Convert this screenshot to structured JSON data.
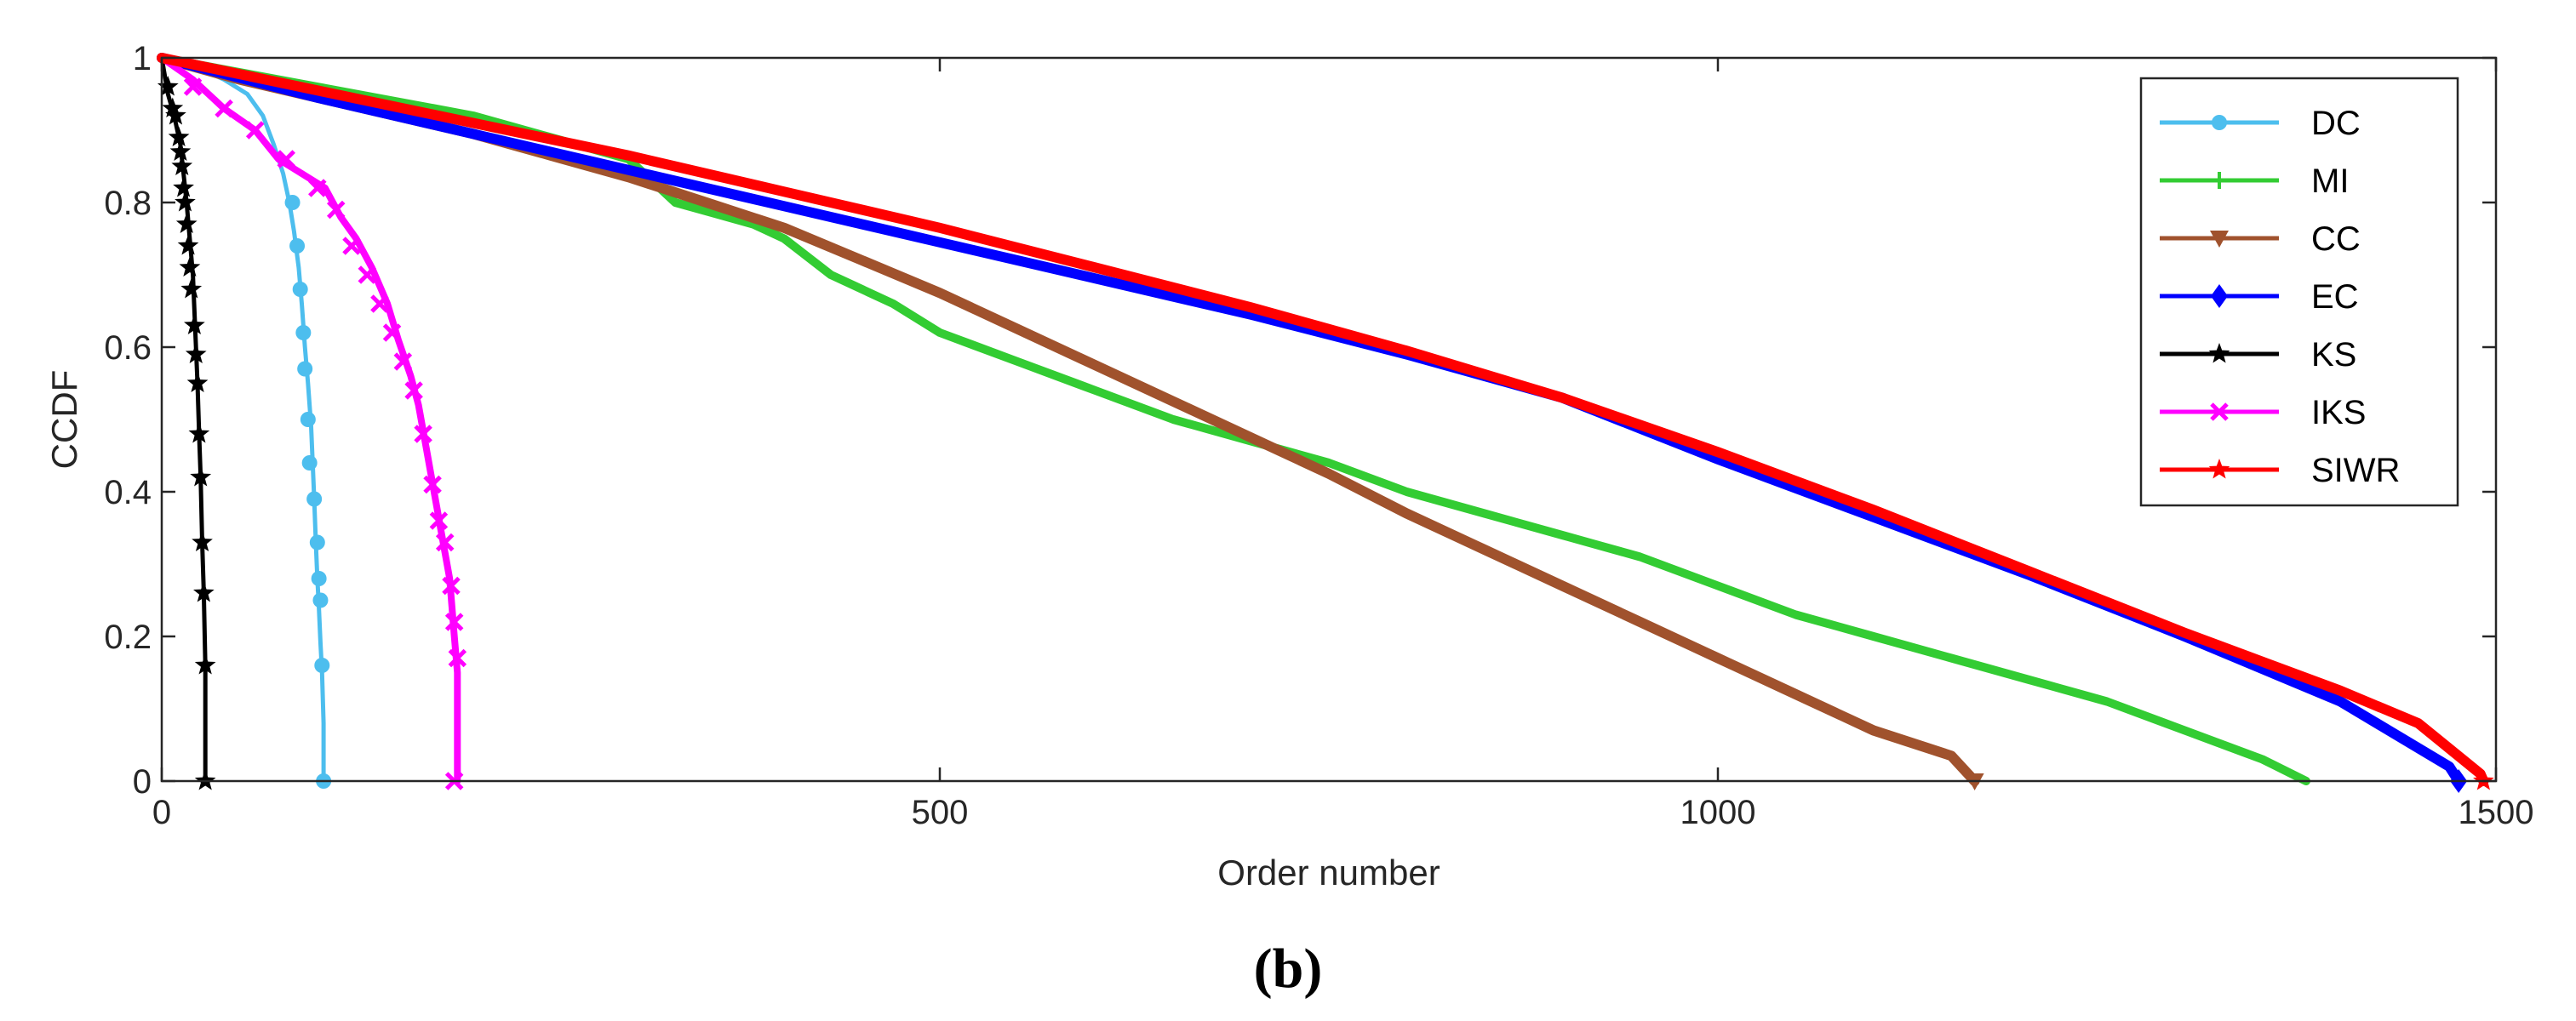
{
  "chart_data": {
    "type": "line",
    "title": "",
    "caption": "(b)",
    "xlabel": "Order number",
    "ylabel": "CCDF",
    "xlim": [
      0,
      1500
    ],
    "ylim": [
      0,
      1
    ],
    "xticks": [
      0,
      500,
      1000,
      1500
    ],
    "xtick_labels": [
      "0",
      "500",
      "1000",
      "1500"
    ],
    "yticks": [
      0,
      0.2,
      0.4,
      0.6,
      0.8,
      1
    ],
    "ytick_labels": [
      "0",
      "0.2",
      "0.4",
      "0.6",
      "0.8",
      "1"
    ],
    "grid": false,
    "legend_position": "top-right",
    "series": [
      {
        "name": "DC",
        "color": "#4DBEEE",
        "marker": "circle",
        "thickness": 5,
        "points": [
          [
            0,
            1
          ],
          [
            20,
            0.99
          ],
          [
            40,
            0.97
          ],
          [
            55,
            0.95
          ],
          [
            65,
            0.92
          ],
          [
            72,
            0.88
          ],
          [
            78,
            0.84
          ],
          [
            82,
            0.8
          ],
          [
            85,
            0.76
          ],
          [
            88,
            0.71
          ],
          [
            90,
            0.66
          ],
          [
            92,
            0.6
          ],
          [
            94,
            0.55
          ],
          [
            96,
            0.49
          ],
          [
            97,
            0.44
          ],
          [
            98,
            0.39
          ],
          [
            99,
            0.33
          ],
          [
            100,
            0.28
          ],
          [
            101,
            0.24
          ],
          [
            102,
            0.19
          ],
          [
            103,
            0.15
          ],
          [
            104,
            0.08
          ],
          [
            104,
            0
          ]
        ],
        "markers": [
          [
            84,
            0.8
          ],
          [
            87,
            0.74
          ],
          [
            89,
            0.68
          ],
          [
            91,
            0.62
          ],
          [
            92,
            0.57
          ],
          [
            94,
            0.5
          ],
          [
            95,
            0.44
          ],
          [
            98,
            0.39
          ],
          [
            100,
            0.33
          ],
          [
            101,
            0.28
          ],
          [
            102,
            0.25
          ],
          [
            103,
            0.16
          ],
          [
            104,
            0
          ]
        ]
      },
      {
        "name": "MI",
        "color": "#33CC33",
        "marker": "plus",
        "thickness": 10,
        "points": [
          [
            0,
            1
          ],
          [
            50,
            0.98
          ],
          [
            100,
            0.96
          ],
          [
            150,
            0.94
          ],
          [
            200,
            0.92
          ],
          [
            250,
            0.89
          ],
          [
            300,
            0.86
          ],
          [
            330,
            0.8
          ],
          [
            380,
            0.77
          ],
          [
            400,
            0.75
          ],
          [
            430,
            0.7
          ],
          [
            470,
            0.66
          ],
          [
            500,
            0.62
          ],
          [
            550,
            0.58
          ],
          [
            600,
            0.54
          ],
          [
            650,
            0.5
          ],
          [
            700,
            0.47
          ],
          [
            750,
            0.44
          ],
          [
            800,
            0.4
          ],
          [
            850,
            0.37
          ],
          [
            900,
            0.34
          ],
          [
            950,
            0.31
          ],
          [
            1000,
            0.27
          ],
          [
            1050,
            0.23
          ],
          [
            1100,
            0.2
          ],
          [
            1150,
            0.17
          ],
          [
            1200,
            0.14
          ],
          [
            1250,
            0.11
          ],
          [
            1300,
            0.07
          ],
          [
            1350,
            0.03
          ],
          [
            1378,
            0
          ]
        ],
        "markers": []
      },
      {
        "name": "CC",
        "color": "#A0522D",
        "marker": "triangle-down",
        "thickness": 12,
        "points": [
          [
            0,
            1
          ],
          [
            50,
            0.97
          ],
          [
            100,
            0.945
          ],
          [
            150,
            0.92
          ],
          [
            200,
            0.895
          ],
          [
            250,
            0.865
          ],
          [
            300,
            0.835
          ],
          [
            350,
            0.8
          ],
          [
            400,
            0.765
          ],
          [
            450,
            0.72
          ],
          [
            500,
            0.675
          ],
          [
            550,
            0.625
          ],
          [
            600,
            0.575
          ],
          [
            650,
            0.525
          ],
          [
            700,
            0.475
          ],
          [
            750,
            0.425
          ],
          [
            800,
            0.37
          ],
          [
            850,
            0.32
          ],
          [
            900,
            0.27
          ],
          [
            950,
            0.22
          ],
          [
            1000,
            0.17
          ],
          [
            1050,
            0.12
          ],
          [
            1100,
            0.07
          ],
          [
            1150,
            0.035
          ],
          [
            1165,
            0
          ]
        ],
        "markers": [
          [
            1165,
            0
          ]
        ]
      },
      {
        "name": "EC",
        "color": "#0000FF",
        "marker": "diamond",
        "thickness": 12,
        "points": [
          [
            0,
            1
          ],
          [
            100,
            0.945
          ],
          [
            200,
            0.895
          ],
          [
            300,
            0.845
          ],
          [
            400,
            0.795
          ],
          [
            500,
            0.745
          ],
          [
            600,
            0.695
          ],
          [
            700,
            0.645
          ],
          [
            800,
            0.59
          ],
          [
            900,
            0.53
          ],
          [
            1000,
            0.445
          ],
          [
            1100,
            0.365
          ],
          [
            1200,
            0.285
          ],
          [
            1300,
            0.2
          ],
          [
            1400,
            0.11
          ],
          [
            1470,
            0.02
          ],
          [
            1476,
            0
          ]
        ],
        "markers": [
          [
            1476,
            0
          ]
        ]
      },
      {
        "name": "KS",
        "color": "#000000",
        "marker": "star",
        "thickness": 5,
        "points": [
          [
            0,
            1
          ],
          [
            4,
            0.95
          ],
          [
            8,
            0.92
          ],
          [
            12,
            0.88
          ],
          [
            14,
            0.84
          ],
          [
            16,
            0.8
          ],
          [
            18,
            0.75
          ],
          [
            20,
            0.7
          ],
          [
            21,
            0.65
          ],
          [
            22,
            0.6
          ],
          [
            23,
            0.55
          ],
          [
            24,
            0.48
          ],
          [
            25,
            0.42
          ],
          [
            26,
            0.33
          ],
          [
            27,
            0.26
          ],
          [
            28,
            0.16
          ],
          [
            28,
            0
          ]
        ],
        "markers": [
          [
            4,
            0.96
          ],
          [
            7,
            0.93
          ],
          [
            9,
            0.92
          ],
          [
            11,
            0.89
          ],
          [
            12,
            0.87
          ],
          [
            13,
            0.85
          ],
          [
            14,
            0.82
          ],
          [
            15,
            0.8
          ],
          [
            16,
            0.77
          ],
          [
            17,
            0.74
          ],
          [
            18,
            0.71
          ],
          [
            19,
            0.68
          ],
          [
            21,
            0.63
          ],
          [
            22,
            0.59
          ],
          [
            23,
            0.55
          ],
          [
            24,
            0.48
          ],
          [
            25,
            0.42
          ],
          [
            26,
            0.33
          ],
          [
            27,
            0.26
          ],
          [
            28,
            0.16
          ],
          [
            28,
            0
          ]
        ]
      },
      {
        "name": "IKS",
        "color": "#FF00FF",
        "marker": "x",
        "thickness": 8,
        "points": [
          [
            0,
            1
          ],
          [
            20,
            0.97
          ],
          [
            40,
            0.93
          ],
          [
            60,
            0.9
          ],
          [
            75,
            0.86
          ],
          [
            90,
            0.84
          ],
          [
            105,
            0.82
          ],
          [
            115,
            0.78
          ],
          [
            125,
            0.75
          ],
          [
            135,
            0.71
          ],
          [
            145,
            0.66
          ],
          [
            152,
            0.61
          ],
          [
            160,
            0.56
          ],
          [
            165,
            0.52
          ],
          [
            170,
            0.46
          ],
          [
            175,
            0.4
          ],
          [
            180,
            0.34
          ],
          [
            185,
            0.28
          ],
          [
            188,
            0.2
          ],
          [
            190,
            0.15
          ],
          [
            190,
            0
          ]
        ],
        "markers": [
          [
            20,
            0.96
          ],
          [
            40,
            0.93
          ],
          [
            60,
            0.9
          ],
          [
            80,
            0.86
          ],
          [
            100,
            0.82
          ],
          [
            112,
            0.79
          ],
          [
            122,
            0.74
          ],
          [
            132,
            0.7
          ],
          [
            140,
            0.66
          ],
          [
            148,
            0.62
          ],
          [
            155,
            0.58
          ],
          [
            162,
            0.54
          ],
          [
            168,
            0.48
          ],
          [
            174,
            0.41
          ],
          [
            178,
            0.36
          ],
          [
            182,
            0.33
          ],
          [
            186,
            0.27
          ],
          [
            188,
            0.22
          ],
          [
            190,
            0.17
          ],
          [
            188,
            0
          ]
        ]
      },
      {
        "name": "SIWR",
        "color": "#FF0000",
        "marker": "star",
        "thickness": 12,
        "points": [
          [
            0,
            1
          ],
          [
            100,
            0.955
          ],
          [
            200,
            0.91
          ],
          [
            300,
            0.865
          ],
          [
            400,
            0.815
          ],
          [
            500,
            0.765
          ],
          [
            600,
            0.71
          ],
          [
            700,
            0.655
          ],
          [
            800,
            0.595
          ],
          [
            900,
            0.53
          ],
          [
            1000,
            0.455
          ],
          [
            1100,
            0.375
          ],
          [
            1200,
            0.29
          ],
          [
            1300,
            0.205
          ],
          [
            1400,
            0.125
          ],
          [
            1450,
            0.08
          ],
          [
            1490,
            0.01
          ],
          [
            1492,
            0
          ]
        ],
        "markers": [
          [
            1492,
            0
          ]
        ]
      }
    ]
  }
}
